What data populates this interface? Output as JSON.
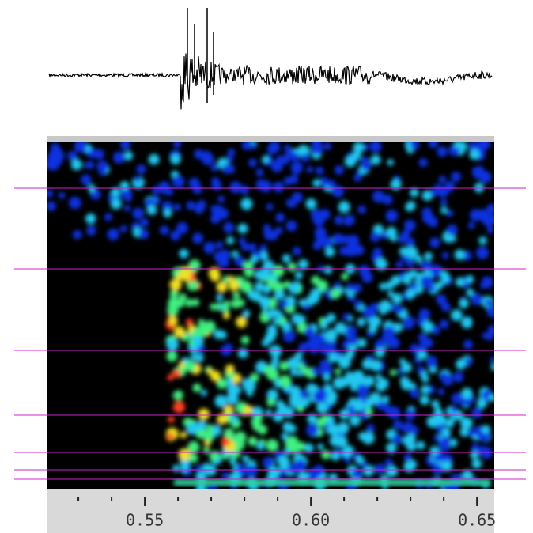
{
  "chart_data": {
    "type": "spectrogram",
    "xlim": [
      0.5207,
      0.6552
    ],
    "xticks": [
      0.55,
      {
        "value": 0.6,
        "label": "0.60"
      },
      0.65
    ],
    "xminorticks": [
      0.53,
      0.54,
      0.56,
      0.57,
      0.58,
      0.59,
      0.61,
      0.62,
      0.63,
      0.64
    ],
    "marker_color": "#d020d0"
  }
}
